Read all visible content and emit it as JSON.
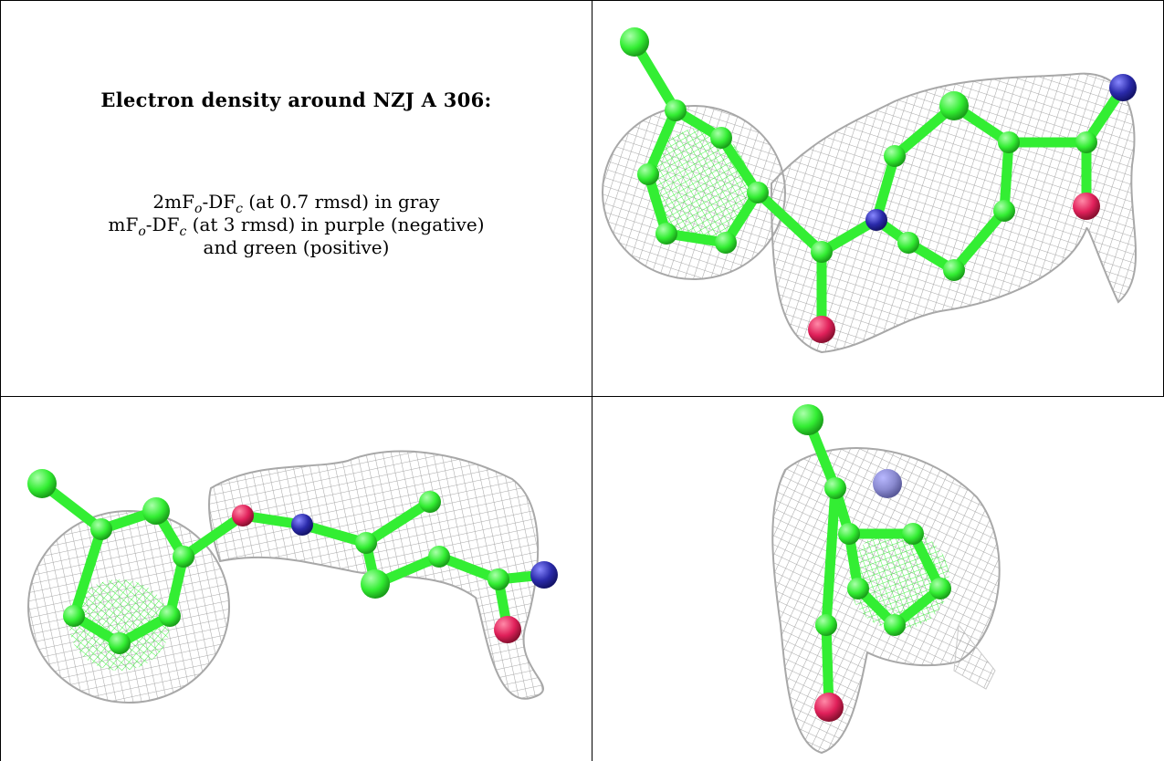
{
  "caption": {
    "title": "Electron density around NZJ A 306:",
    "line1": {
      "pre": "2mF",
      "sub1": "o",
      "mid": "-DF",
      "sub2": "c",
      "post": " (at 0.7 rmsd) in gray"
    },
    "line2": {
      "pre": "mF",
      "sub1": "o",
      "mid": "-DF",
      "sub2": "c",
      "post": " (at 3 rmsd) in purple (negative)"
    },
    "line3": "and green (positive)"
  },
  "colors": {
    "carbon": "#33ee33",
    "carbon_dark": "#1fbf1f",
    "nitrogen": "#2a2aaa",
    "oxygen": "#e0205a",
    "mesh": "#a8a8a8",
    "border": "#000000"
  },
  "panels": [
    {
      "name": "view-top-right",
      "icon": "ligand-density-view-icon"
    },
    {
      "name": "view-bottom-left",
      "icon": "ligand-density-view-icon"
    },
    {
      "name": "view-bottom-right",
      "icon": "ligand-density-view-icon"
    }
  ]
}
